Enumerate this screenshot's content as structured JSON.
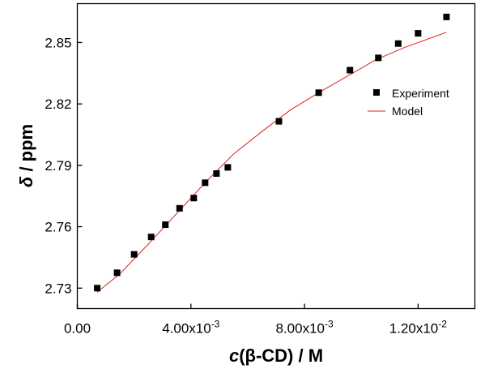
{
  "chart_data": {
    "type": "scatter",
    "xlabel": "c(β-CD) / M",
    "ylabel": "δ / ppm",
    "xlim": [
      0,
      0.014
    ],
    "ylim": [
      2.72,
      2.869
    ],
    "x_ticks": [
      {
        "value": 0.0,
        "base": "0.00",
        "exp": ""
      },
      {
        "value": 0.004,
        "base": "4.00x10",
        "exp": "-3"
      },
      {
        "value": 0.008,
        "base": "8.00x10",
        "exp": "-3"
      },
      {
        "value": 0.012,
        "base": "1.20x10",
        "exp": "-2"
      }
    ],
    "y_ticks": [
      {
        "value": 2.73,
        "label": "2.73"
      },
      {
        "value": 2.76,
        "label": "2.76"
      },
      {
        "value": 2.79,
        "label": "2.79"
      },
      {
        "value": 2.82,
        "label": "2.82"
      },
      {
        "value": 2.85,
        "label": "2.85"
      }
    ],
    "legend": {
      "placement": "right",
      "entries": [
        {
          "label": "Experiment",
          "marker": "square"
        },
        {
          "label": "Model",
          "marker": "line"
        }
      ]
    },
    "series": [
      {
        "name": "Experiment",
        "kind": "scatter",
        "color": "#000000",
        "x": [
          0.0007,
          0.0014,
          0.002,
          0.0026,
          0.0031,
          0.0036,
          0.0041,
          0.0045,
          0.0049,
          0.0053,
          0.0071,
          0.0085,
          0.0096,
          0.0106,
          0.0113,
          0.012,
          0.013
        ],
        "y": [
          2.73,
          2.7375,
          2.7465,
          2.755,
          2.761,
          2.769,
          2.774,
          2.7815,
          2.786,
          2.789,
          2.8115,
          2.8255,
          2.8365,
          2.8425,
          2.8495,
          2.8545,
          2.8625
        ]
      },
      {
        "name": "Model",
        "kind": "line",
        "color": "#e0201f",
        "x": [
          0.0007,
          0.0015,
          0.0025,
          0.0035,
          0.0045,
          0.0055,
          0.0065,
          0.0075,
          0.0085,
          0.0095,
          0.0105,
          0.0115,
          0.0125,
          0.013
        ],
        "y": [
          2.728,
          2.737,
          2.7515,
          2.7665,
          2.7815,
          2.7955,
          2.8065,
          2.817,
          2.8255,
          2.8335,
          2.8415,
          2.8475,
          2.8525,
          2.855
        ]
      }
    ]
  }
}
